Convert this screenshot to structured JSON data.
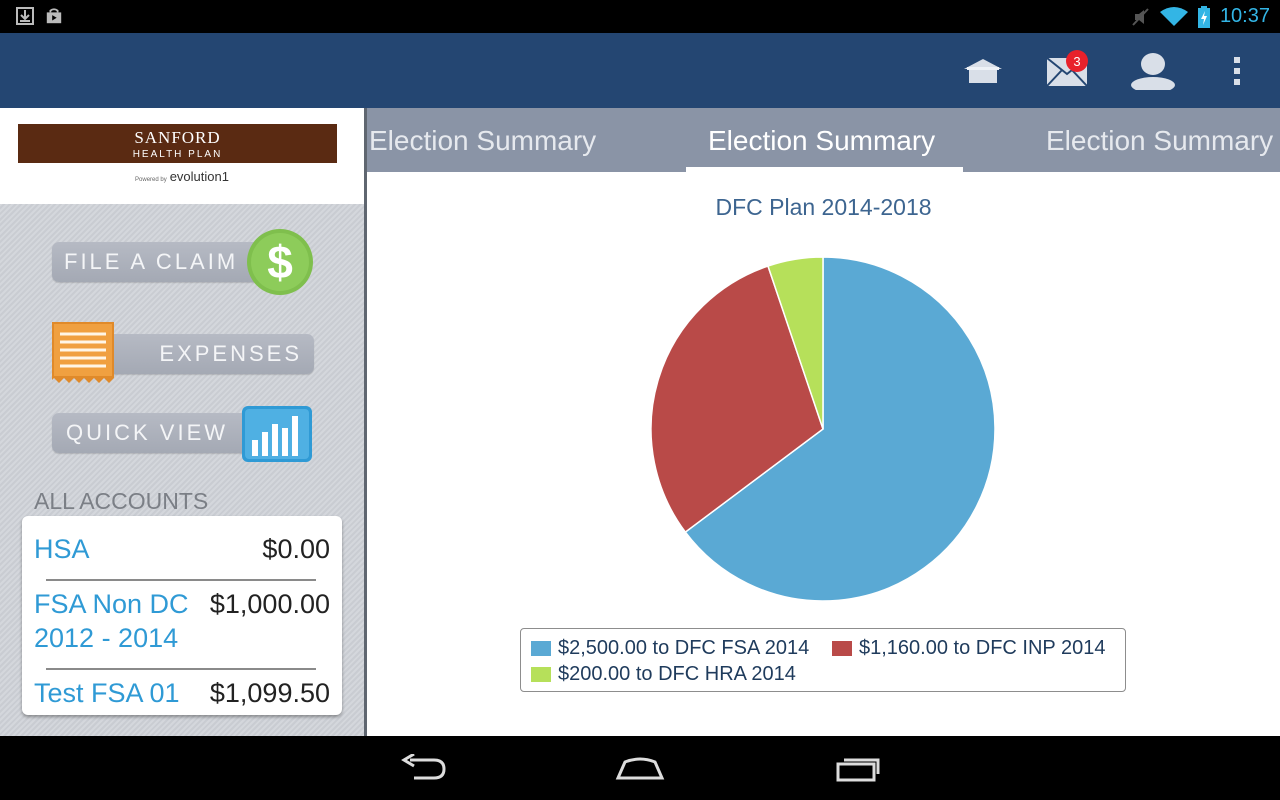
{
  "status_bar": {
    "time": "10:37",
    "left_icons": [
      "download-icon",
      "store-bag-icon"
    ],
    "right_icons": [
      "mute-icon",
      "wifi-icon",
      "battery-charging-icon"
    ]
  },
  "action_bar": {
    "icons": [
      "home-icon",
      "mail-icon",
      "profile-icon",
      "overflow-menu-icon"
    ],
    "mail_badge": "3"
  },
  "sidebar": {
    "logo": {
      "line1": "SANFORD",
      "line2": "HEALTH PLAN",
      "powered_by": "Powered by",
      "powered_brand": "evolution1"
    },
    "menu": [
      {
        "label": "FILE A CLAIM",
        "icon": "dollar-icon"
      },
      {
        "label": "EXPENSES",
        "icon": "receipt-icon"
      },
      {
        "label": "QUICK VIEW",
        "icon": "bar-chart-icon"
      }
    ],
    "accounts_title": "ALL ACCOUNTS",
    "accounts": [
      {
        "name": "HSA",
        "amount": "$0.00"
      },
      {
        "name": "FSA Non DC 2012 - 2014",
        "amount": "$1,000.00"
      },
      {
        "name": "Test FSA 01",
        "amount": "$1,099.50"
      }
    ]
  },
  "tabs": [
    "Election Summary",
    "Election Summary",
    "Election Summary"
  ],
  "selected_tab": 1,
  "chart_data": {
    "type": "pie",
    "title": "DFC Plan 2014-2018",
    "labels": [
      "$2,500.00 to DFC FSA 2014",
      "$1,160.00 to DFC INP 2014",
      "$200.00 to DFC HRA 2014"
    ],
    "values": [
      2500,
      1160,
      200
    ],
    "colors": [
      "#5aa9d4",
      "#b94a48",
      "#b6e05a"
    ],
    "legend_position": "bottom"
  },
  "nav_bar": {
    "icons": [
      "back-icon",
      "home-nav-icon",
      "recents-icon"
    ]
  }
}
